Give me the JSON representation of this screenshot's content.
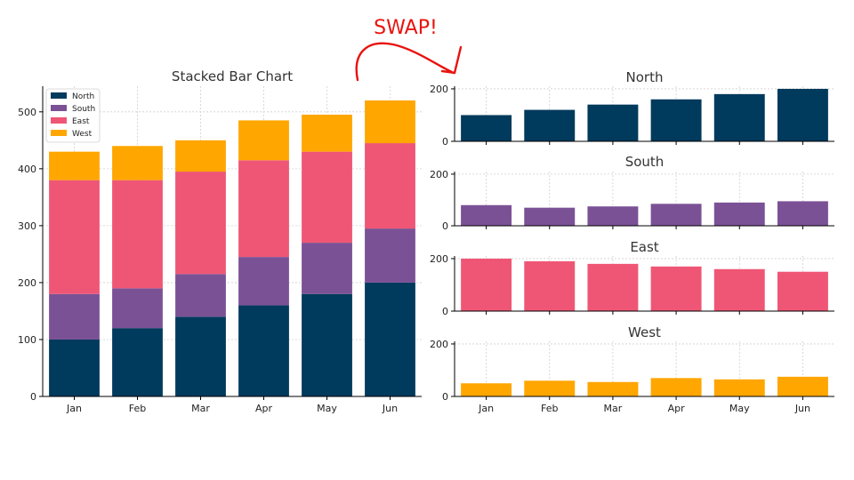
{
  "annotation": {
    "label": "SWAP!",
    "color": "#e8130e"
  },
  "colors": {
    "North": "#003a5c",
    "South": "#7b5196",
    "East": "#ef5675",
    "West": "#ffa600"
  },
  "chart_data": [
    {
      "type": "bar",
      "stacked": true,
      "title": "Stacked Bar Chart",
      "categories": [
        "Jan",
        "Feb",
        "Mar",
        "Apr",
        "May",
        "Jun"
      ],
      "series": [
        {
          "name": "North",
          "values": [
            100,
            120,
            140,
            160,
            180,
            200
          ]
        },
        {
          "name": "South",
          "values": [
            80,
            70,
            75,
            85,
            90,
            95
          ]
        },
        {
          "name": "East",
          "values": [
            200,
            190,
            180,
            170,
            160,
            150
          ]
        },
        {
          "name": "West",
          "values": [
            50,
            60,
            55,
            70,
            65,
            75
          ]
        }
      ],
      "ylim": [
        0,
        545
      ],
      "yticks": [
        0,
        100,
        200,
        300,
        400,
        500
      ],
      "grid": true,
      "legend": "top-left"
    },
    {
      "type": "bar",
      "title": "North",
      "categories": [
        "Jan",
        "Feb",
        "Mar",
        "Apr",
        "May",
        "Jun"
      ],
      "values": [
        100,
        120,
        140,
        160,
        180,
        200
      ],
      "ylim": [
        0,
        210
      ],
      "yticks": [
        0,
        200
      ],
      "grid": true
    },
    {
      "type": "bar",
      "title": "South",
      "categories": [
        "Jan",
        "Feb",
        "Mar",
        "Apr",
        "May",
        "Jun"
      ],
      "values": [
        80,
        70,
        75,
        85,
        90,
        95
      ],
      "ylim": [
        0,
        210
      ],
      "yticks": [
        0,
        200
      ],
      "grid": true
    },
    {
      "type": "bar",
      "title": "East",
      "categories": [
        "Jan",
        "Feb",
        "Mar",
        "Apr",
        "May",
        "Jun"
      ],
      "values": [
        200,
        190,
        180,
        170,
        160,
        150
      ],
      "ylim": [
        0,
        210
      ],
      "yticks": [
        0,
        200
      ],
      "grid": true
    },
    {
      "type": "bar",
      "title": "West",
      "categories": [
        "Jan",
        "Feb",
        "Mar",
        "Apr",
        "May",
        "Jun"
      ],
      "values": [
        50,
        60,
        55,
        70,
        65,
        75
      ],
      "ylim": [
        0,
        210
      ],
      "yticks": [
        0,
        200
      ],
      "grid": true
    }
  ]
}
